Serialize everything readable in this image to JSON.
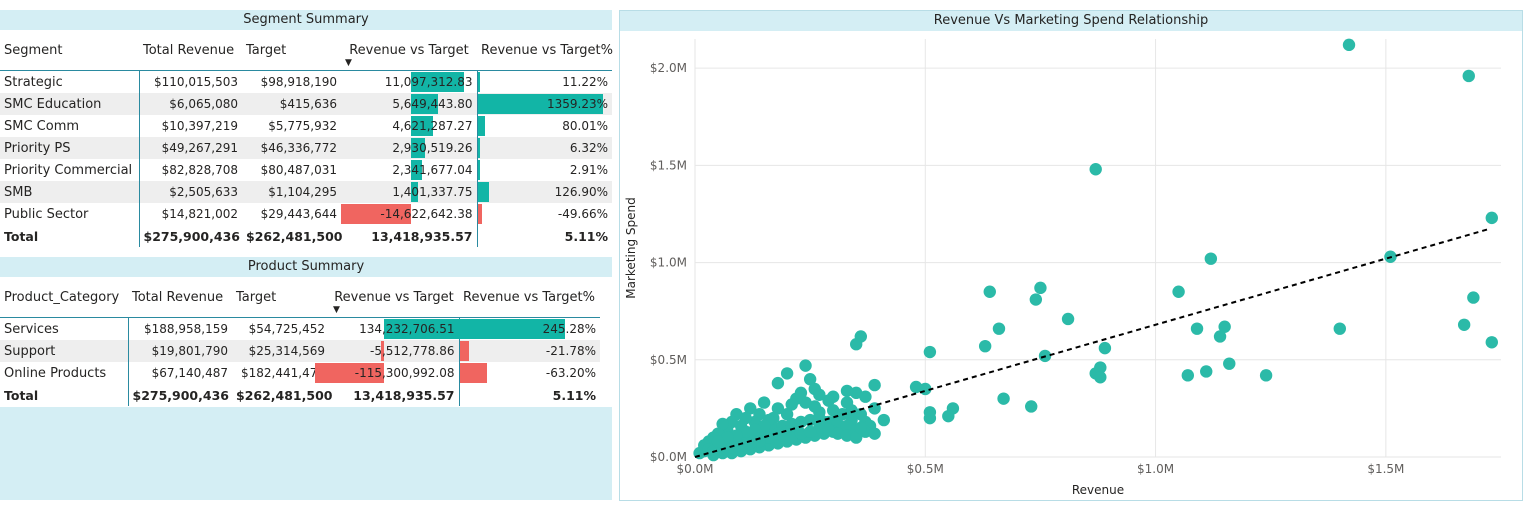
{
  "segment_summary": {
    "title": "Segment Summary",
    "columns": [
      "Segment",
      "Total Revenue",
      "Target",
      "Revenue vs Target",
      "Revenue vs Target%"
    ],
    "sort_column": "Revenue vs Target",
    "rows": [
      {
        "label": "Strategic",
        "revenue": "$110,015,503",
        "target": "$98,918,190",
        "rvt": "11,097,312.83",
        "rvt_value": 11097312.83,
        "pct": "11.22%",
        "pct_value": 11.22
      },
      {
        "label": "SMC Education",
        "revenue": "$6,065,080",
        "target": "$415,636",
        "rvt": "5,649,443.80",
        "rvt_value": 5649443.8,
        "pct": "1359.23%",
        "pct_value": 1359.23
      },
      {
        "label": "SMC Comm",
        "revenue": "$10,397,219",
        "target": "$5,775,932",
        "rvt": "4,621,287.27",
        "rvt_value": 4621287.27,
        "pct": "80.01%",
        "pct_value": 80.01
      },
      {
        "label": "Priority PS",
        "revenue": "$49,267,291",
        "target": "$46,336,772",
        "rvt": "2,930,519.26",
        "rvt_value": 2930519.26,
        "pct": "6.32%",
        "pct_value": 6.32
      },
      {
        "label": "Priority Commercial",
        "revenue": "$82,828,708",
        "target": "$80,487,031",
        "rvt": "2,341,677.04",
        "rvt_value": 2341677.04,
        "pct": "2.91%",
        "pct_value": 2.91
      },
      {
        "label": "SMB",
        "revenue": "$2,505,633",
        "target": "$1,104,295",
        "rvt": "1,401,337.75",
        "rvt_value": 1401337.75,
        "pct": "126.90%",
        "pct_value": 126.9
      },
      {
        "label": "Public Sector",
        "revenue": "$14,821,002",
        "target": "$29,443,644",
        "rvt": "-14,622,642.38",
        "rvt_value": -14622642.38,
        "pct": "-49.66%",
        "pct_value": -49.66
      }
    ],
    "total": {
      "label": "Total",
      "revenue": "$275,900,436",
      "target": "$262,481,500",
      "rvt": "13,418,935.57",
      "pct": "5.11%"
    }
  },
  "product_summary": {
    "title": "Product Summary",
    "columns": [
      "Product_Category",
      "Total Revenue",
      "Target",
      "Revenue vs Target",
      "Revenue vs Target%"
    ],
    "sort_column": "Revenue vs Target",
    "rows": [
      {
        "label": "Services",
        "revenue": "$188,958,159",
        "target": "$54,725,452",
        "rvt": "134,232,706.51",
        "rvt_value": 134232706.51,
        "pct": "245.28%",
        "pct_value": 245.28
      },
      {
        "label": "Support",
        "revenue": "$19,801,790",
        "target": "$25,314,569",
        "rvt": "-5,512,778.86",
        "rvt_value": -5512778.86,
        "pct": "-21.78%",
        "pct_value": -21.78
      },
      {
        "label": "Online Products",
        "revenue": "$67,140,487",
        "target": "$182,441,479",
        "rvt": "-115,300,992.08",
        "rvt_value": -115300992.08,
        "pct": "-63.20%",
        "pct_value": -63.2
      }
    ],
    "total": {
      "label": "Total",
      "revenue": "$275,900,436",
      "target": "$262,481,500",
      "rvt": "13,418,935.57",
      "pct": "5.11%"
    }
  },
  "colors": {
    "positive_bar": "#12b5a6",
    "negative_bar": "#f06560",
    "title_bar": "#d4eef4",
    "point": "#2bbaa8",
    "trend": "#000000"
  },
  "chart_data": {
    "type": "scatter",
    "title": "Revenue Vs Marketing Spend Relationship",
    "xlabel": "Revenue",
    "ylabel": "Marketing Spend",
    "xlim": [
      0,
      1.75
    ],
    "ylim": [
      0,
      2.15
    ],
    "x_ticks": [
      0,
      0.5,
      1.0,
      1.5
    ],
    "x_tick_labels": [
      "$0.0M",
      "$0.5M",
      "$1.0M",
      "$1.5M"
    ],
    "y_ticks": [
      0,
      0.5,
      1.0,
      1.5,
      2.0
    ],
    "y_tick_labels": [
      "$0.0M",
      "$0.5M",
      "$1.0M",
      "$1.5M",
      "$2.0M"
    ],
    "units": "millions of dollars",
    "grid": true,
    "trendline": {
      "style": "dashed",
      "from": [
        0,
        0
      ],
      "to": [
        1.72,
        1.17
      ]
    },
    "points": [
      [
        1.42,
        2.12
      ],
      [
        1.68,
        1.96
      ],
      [
        0.87,
        1.48
      ],
      [
        1.73,
        1.23
      ],
      [
        1.12,
        1.02
      ],
      [
        1.51,
        1.03
      ],
      [
        1.05,
        0.85
      ],
      [
        0.64,
        0.85
      ],
      [
        0.75,
        0.87
      ],
      [
        0.74,
        0.81
      ],
      [
        0.81,
        0.71
      ],
      [
        1.69,
        0.82
      ],
      [
        1.09,
        0.66
      ],
      [
        1.15,
        0.67
      ],
      [
        1.14,
        0.62
      ],
      [
        1.4,
        0.66
      ],
      [
        1.67,
        0.68
      ],
      [
        1.73,
        0.59
      ],
      [
        0.66,
        0.66
      ],
      [
        0.63,
        0.57
      ],
      [
        0.36,
        0.62
      ],
      [
        0.35,
        0.58
      ],
      [
        0.51,
        0.54
      ],
      [
        0.89,
        0.56
      ],
      [
        0.76,
        0.52
      ],
      [
        1.16,
        0.48
      ],
      [
        1.24,
        0.42
      ],
      [
        1.11,
        0.44
      ],
      [
        1.07,
        0.42
      ],
      [
        0.87,
        0.43
      ],
      [
        0.88,
        0.46
      ],
      [
        0.88,
        0.41
      ],
      [
        0.67,
        0.3
      ],
      [
        0.73,
        0.26
      ],
      [
        0.56,
        0.25
      ],
      [
        0.5,
        0.35
      ],
      [
        0.48,
        0.36
      ],
      [
        0.51,
        0.23
      ],
      [
        0.51,
        0.2
      ],
      [
        0.55,
        0.21
      ],
      [
        0.41,
        0.19
      ],
      [
        0.39,
        0.25
      ],
      [
        0.39,
        0.37
      ],
      [
        0.37,
        0.31
      ],
      [
        0.35,
        0.33
      ],
      [
        0.33,
        0.34
      ],
      [
        0.3,
        0.31
      ],
      [
        0.25,
        0.4
      ],
      [
        0.24,
        0.47
      ],
      [
        0.2,
        0.43
      ],
      [
        0.18,
        0.38
      ],
      [
        0.26,
        0.35
      ],
      [
        0.29,
        0.29
      ],
      [
        0.33,
        0.28
      ],
      [
        0.36,
        0.22
      ],
      [
        0.31,
        0.21
      ],
      [
        0.34,
        0.19
      ],
      [
        0.37,
        0.18
      ],
      [
        0.38,
        0.16
      ],
      [
        0.32,
        0.15
      ],
      [
        0.28,
        0.18
      ],
      [
        0.27,
        0.23
      ],
      [
        0.26,
        0.26
      ],
      [
        0.24,
        0.28
      ],
      [
        0.22,
        0.3
      ],
      [
        0.21,
        0.27
      ],
      [
        0.2,
        0.22
      ],
      [
        0.18,
        0.25
      ],
      [
        0.17,
        0.2
      ],
      [
        0.15,
        0.28
      ],
      [
        0.14,
        0.22
      ],
      [
        0.13,
        0.18
      ],
      [
        0.12,
        0.25
      ],
      [
        0.11,
        0.2
      ],
      [
        0.1,
        0.16
      ],
      [
        0.09,
        0.22
      ],
      [
        0.08,
        0.18
      ],
      [
        0.07,
        0.14
      ],
      [
        0.06,
        0.17
      ],
      [
        0.05,
        0.12
      ],
      [
        0.04,
        0.1
      ],
      [
        0.03,
        0.08
      ],
      [
        0.02,
        0.06
      ],
      [
        0.02,
        0.03
      ],
      [
        0.01,
        0.02
      ],
      [
        0.03,
        0.04
      ],
      [
        0.05,
        0.05
      ],
      [
        0.07,
        0.07
      ],
      [
        0.09,
        0.09
      ],
      [
        0.11,
        0.1
      ],
      [
        0.13,
        0.12
      ],
      [
        0.15,
        0.13
      ],
      [
        0.17,
        0.15
      ],
      [
        0.19,
        0.16
      ],
      [
        0.21,
        0.17
      ],
      [
        0.23,
        0.18
      ],
      [
        0.25,
        0.19
      ],
      [
        0.27,
        0.2
      ],
      [
        0.29,
        0.18
      ],
      [
        0.31,
        0.17
      ],
      [
        0.33,
        0.16
      ],
      [
        0.35,
        0.14
      ],
      [
        0.37,
        0.13
      ],
      [
        0.39,
        0.12
      ],
      [
        0.3,
        0.13
      ],
      [
        0.28,
        0.12
      ],
      [
        0.26,
        0.11
      ],
      [
        0.24,
        0.1
      ],
      [
        0.22,
        0.09
      ],
      [
        0.2,
        0.08
      ],
      [
        0.18,
        0.07
      ],
      [
        0.16,
        0.06
      ],
      [
        0.14,
        0.05
      ],
      [
        0.12,
        0.04
      ],
      [
        0.1,
        0.03
      ],
      [
        0.08,
        0.02
      ],
      [
        0.06,
        0.02
      ],
      [
        0.04,
        0.01
      ],
      [
        0.16,
        0.1
      ],
      [
        0.18,
        0.12
      ],
      [
        0.2,
        0.13
      ],
      [
        0.22,
        0.14
      ],
      [
        0.14,
        0.08
      ],
      [
        0.12,
        0.07
      ],
      [
        0.1,
        0.06
      ],
      [
        0.08,
        0.05
      ],
      [
        0.06,
        0.04
      ],
      [
        0.04,
        0.03
      ],
      [
        0.27,
        0.15
      ],
      [
        0.29,
        0.14
      ],
      [
        0.31,
        0.12
      ],
      [
        0.33,
        0.11
      ],
      [
        0.35,
        0.1
      ],
      [
        0.19,
        0.11
      ],
      [
        0.21,
        0.1
      ],
      [
        0.23,
        0.12
      ],
      [
        0.25,
        0.13
      ],
      [
        0.34,
        0.24
      ],
      [
        0.36,
        0.15
      ],
      [
        0.32,
        0.22
      ],
      [
        0.3,
        0.24
      ],
      [
        0.27,
        0.32
      ],
      [
        0.23,
        0.33
      ],
      [
        0.16,
        0.19
      ],
      [
        0.15,
        0.16
      ],
      [
        0.13,
        0.14
      ],
      [
        0.11,
        0.13
      ],
      [
        0.09,
        0.11
      ],
      [
        0.07,
        0.1
      ],
      [
        0.05,
        0.08
      ]
    ]
  }
}
